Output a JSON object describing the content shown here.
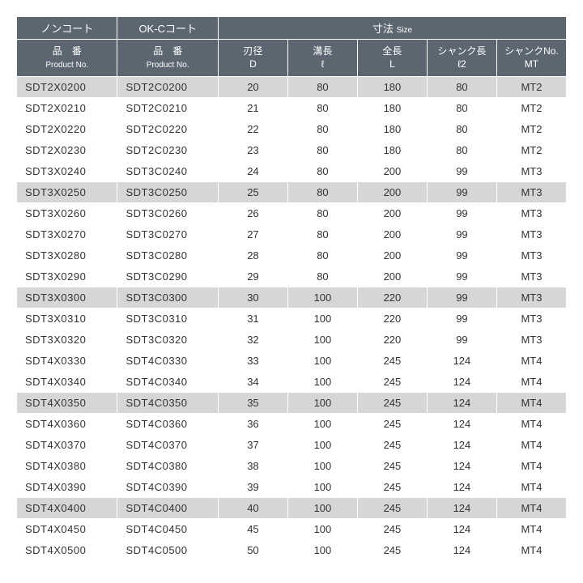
{
  "header": {
    "group_noncoat": "ノンコート",
    "group_okc": "OK-Cコート",
    "group_size_jp": "寸法",
    "group_size_en": "Size",
    "col_product_jp": "品　番",
    "col_product_en": "Product No.",
    "col_d_jp": "刃径",
    "col_d_en": "D",
    "col_l1_jp": "溝長",
    "col_l1_en": "ℓ",
    "col_L_jp": "全長",
    "col_L_en": "L",
    "col_l2_jp": "シャンク長",
    "col_l2_en": "ℓ2",
    "col_mt_jp": "シャンクNo.",
    "col_mt_en": "MT"
  },
  "colors": {
    "header_bg": "#5b6670",
    "header_fg": "#ffffff",
    "row_bg": "#ffffff",
    "shade_bg": "#d6d6d6",
    "border": "#ffffff",
    "text": "#333333"
  },
  "shaded_rows": [
    0,
    5,
    10,
    15,
    20
  ],
  "rows": [
    {
      "nc": "SDT2X0200",
      "okc": "SDT2C0200",
      "d": "20",
      "l": "80",
      "L": "180",
      "l2": "80",
      "mt": "MT2"
    },
    {
      "nc": "SDT2X0210",
      "okc": "SDT2C0210",
      "d": "21",
      "l": "80",
      "L": "180",
      "l2": "80",
      "mt": "MT2"
    },
    {
      "nc": "SDT2X0220",
      "okc": "SDT2C0220",
      "d": "22",
      "l": "80",
      "L": "180",
      "l2": "80",
      "mt": "MT2"
    },
    {
      "nc": "SDT2X0230",
      "okc": "SDT2C0230",
      "d": "23",
      "l": "80",
      "L": "180",
      "l2": "80",
      "mt": "MT2"
    },
    {
      "nc": "SDT3X0240",
      "okc": "SDT3C0240",
      "d": "24",
      "l": "80",
      "L": "200",
      "l2": "99",
      "mt": "MT3"
    },
    {
      "nc": "SDT3X0250",
      "okc": "SDT3C0250",
      "d": "25",
      "l": "80",
      "L": "200",
      "l2": "99",
      "mt": "MT3"
    },
    {
      "nc": "SDT3X0260",
      "okc": "SDT3C0260",
      "d": "26",
      "l": "80",
      "L": "200",
      "l2": "99",
      "mt": "MT3"
    },
    {
      "nc": "SDT3X0270",
      "okc": "SDT3C0270",
      "d": "27",
      "l": "80",
      "L": "200",
      "l2": "99",
      "mt": "MT3"
    },
    {
      "nc": "SDT3X0280",
      "okc": "SDT3C0280",
      "d": "28",
      "l": "80",
      "L": "200",
      "l2": "99",
      "mt": "MT3"
    },
    {
      "nc": "SDT3X0290",
      "okc": "SDT3C0290",
      "d": "29",
      "l": "80",
      "L": "200",
      "l2": "99",
      "mt": "MT3"
    },
    {
      "nc": "SDT3X0300",
      "okc": "SDT3C0300",
      "d": "30",
      "l": "100",
      "L": "220",
      "l2": "99",
      "mt": "MT3"
    },
    {
      "nc": "SDT3X0310",
      "okc": "SDT3C0310",
      "d": "31",
      "l": "100",
      "L": "220",
      "l2": "99",
      "mt": "MT3"
    },
    {
      "nc": "SDT3X0320",
      "okc": "SDT3C0320",
      "d": "32",
      "l": "100",
      "L": "220",
      "l2": "99",
      "mt": "MT3"
    },
    {
      "nc": "SDT4X0330",
      "okc": "SDT4C0330",
      "d": "33",
      "l": "100",
      "L": "245",
      "l2": "124",
      "mt": "MT4"
    },
    {
      "nc": "SDT4X0340",
      "okc": "SDT4C0340",
      "d": "34",
      "l": "100",
      "L": "245",
      "l2": "124",
      "mt": "MT4"
    },
    {
      "nc": "SDT4X0350",
      "okc": "SDT4C0350",
      "d": "35",
      "l": "100",
      "L": "245",
      "l2": "124",
      "mt": "MT4"
    },
    {
      "nc": "SDT4X0360",
      "okc": "SDT4C0360",
      "d": "36",
      "l": "100",
      "L": "245",
      "l2": "124",
      "mt": "MT4"
    },
    {
      "nc": "SDT4X0370",
      "okc": "SDT4C0370",
      "d": "37",
      "l": "100",
      "L": "245",
      "l2": "124",
      "mt": "MT4"
    },
    {
      "nc": "SDT4X0380",
      "okc": "SDT4C0380",
      "d": "38",
      "l": "100",
      "L": "245",
      "l2": "124",
      "mt": "MT4"
    },
    {
      "nc": "SDT4X0390",
      "okc": "SDT4C0390",
      "d": "39",
      "l": "100",
      "L": "245",
      "l2": "124",
      "mt": "MT4"
    },
    {
      "nc": "SDT4X0400",
      "okc": "SDT4C0400",
      "d": "40",
      "l": "100",
      "L": "245",
      "l2": "124",
      "mt": "MT4"
    },
    {
      "nc": "SDT4X0450",
      "okc": "SDT4C0450",
      "d": "45",
      "l": "100",
      "L": "245",
      "l2": "124",
      "mt": "MT4"
    },
    {
      "nc": "SDT4X0500",
      "okc": "SDT4C0500",
      "d": "50",
      "l": "100",
      "L": "245",
      "l2": "124",
      "mt": "MT4"
    }
  ]
}
